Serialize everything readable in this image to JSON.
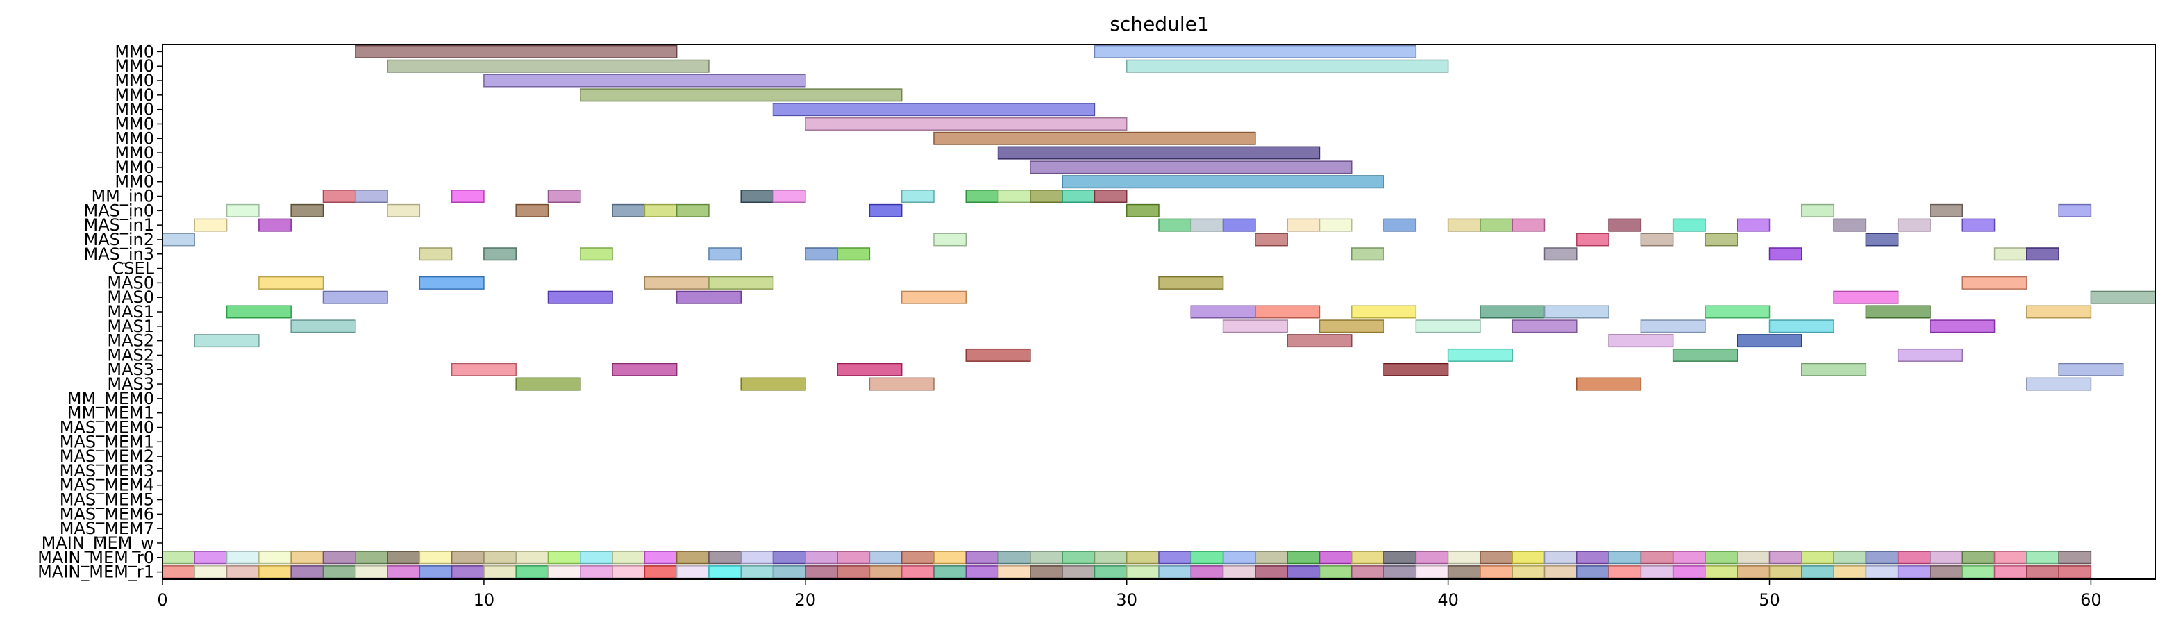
{
  "chart_data": {
    "type": "gantt",
    "title": "schedule1",
    "xlabel": "",
    "ylabel": "",
    "xlim": [
      0,
      62
    ],
    "xticks": [
      0,
      10,
      20,
      30,
      40,
      50,
      60
    ],
    "grid": false,
    "lanes": [
      "MM0",
      "MM0",
      "MM0",
      "MM0",
      "MM0",
      "MM0",
      "MM0",
      "MM0",
      "MM0",
      "MM0",
      "MM_in0",
      "MAS_in0",
      "MAS_in1",
      "MAS_in2",
      "MAS_in3",
      "CSEL",
      "MAS0",
      "MAS0",
      "MAS1",
      "MAS1",
      "MAS2",
      "MAS2",
      "MAS3",
      "MAS3",
      "MM_MEM0",
      "MM_MEM1",
      "MAS_MEM0",
      "MAS_MEM1",
      "MAS_MEM2",
      "MAS_MEM3",
      "MAS_MEM4",
      "MAS_MEM5",
      "MAS_MEM6",
      "MAS_MEM7",
      "MAIN_MEM_w",
      "MAIN_MEM_r0",
      "MAIN_MEM_r1"
    ],
    "tasks": [
      {
        "lane": 0,
        "start": 6,
        "end": 16,
        "color": "#8c5b5e"
      },
      {
        "lane": 0,
        "start": 29,
        "end": 39,
        "color": "#8fb0f0"
      },
      {
        "lane": 1,
        "start": 7,
        "end": 17,
        "color": "#9fb28a"
      },
      {
        "lane": 1,
        "start": 30,
        "end": 40,
        "color": "#9ee0d8"
      },
      {
        "lane": 2,
        "start": 10,
        "end": 20,
        "color": "#9b86d8"
      },
      {
        "lane": 3,
        "start": 13,
        "end": 23,
        "color": "#95b06a"
      },
      {
        "lane": 4,
        "start": 19,
        "end": 29,
        "color": "#6a6ae0"
      },
      {
        "lane": 5,
        "start": 20,
        "end": 30,
        "color": "#d69ac8"
      },
      {
        "lane": 6,
        "start": 24,
        "end": 34,
        "color": "#b8784a"
      },
      {
        "lane": 7,
        "start": 26,
        "end": 36,
        "color": "#4a3a86"
      },
      {
        "lane": 8,
        "start": 27,
        "end": 37,
        "color": "#8e6ab8"
      },
      {
        "lane": 9,
        "start": 28,
        "end": 38,
        "color": "#52a6d0"
      },
      {
        "lane": 10,
        "start": 5,
        "end": 6,
        "color": "#d86070"
      },
      {
        "lane": 10,
        "start": 6,
        "end": 7,
        "color": "#9aa0d8"
      },
      {
        "lane": 10,
        "start": 9,
        "end": 10,
        "color": "#f050f0"
      },
      {
        "lane": 10,
        "start": 12,
        "end": 13,
        "color": "#c070b8"
      },
      {
        "lane": 10,
        "start": 18,
        "end": 19,
        "color": "#3a5a6a"
      },
      {
        "lane": 10,
        "start": 19,
        "end": 20,
        "color": "#f080e8"
      },
      {
        "lane": 10,
        "start": 23,
        "end": 24,
        "color": "#80e0e0"
      },
      {
        "lane": 10,
        "start": 25,
        "end": 26,
        "color": "#40c050"
      },
      {
        "lane": 10,
        "start": 26,
        "end": 27,
        "color": "#b8e890"
      },
      {
        "lane": 10,
        "start": 27,
        "end": 28,
        "color": "#8a9a3a"
      },
      {
        "lane": 10,
        "start": 28,
        "end": 29,
        "color": "#40d0a0"
      },
      {
        "lane": 10,
        "start": 29,
        "end": 30,
        "color": "#a04050"
      },
      {
        "lane": 11,
        "start": 2,
        "end": 3,
        "color": "#d0f8d0"
      },
      {
        "lane": 11,
        "start": 4,
        "end": 5,
        "color": "#7a6a48"
      },
      {
        "lane": 11,
        "start": 7,
        "end": 8,
        "color": "#e8e0b0"
      },
      {
        "lane": 11,
        "start": 11,
        "end": 12,
        "color": "#a06840"
      },
      {
        "lane": 11,
        "start": 14,
        "end": 15,
        "color": "#6888a8"
      },
      {
        "lane": 11,
        "start": 15,
        "end": 16,
        "color": "#c8d860"
      },
      {
        "lane": 11,
        "start": 16,
        "end": 17,
        "color": "#88b850"
      },
      {
        "lane": 11,
        "start": 22,
        "end": 23,
        "color": "#4848e0"
      },
      {
        "lane": 11,
        "start": 30,
        "end": 31,
        "color": "#6a9a2a"
      },
      {
        "lane": 11,
        "start": 51,
        "end": 52,
        "color": "#b8e8b0"
      },
      {
        "lane": 11,
        "start": 55,
        "end": 56,
        "color": "#8a7a70"
      },
      {
        "lane": 11,
        "start": 59,
        "end": 60,
        "color": "#9090f0"
      },
      {
        "lane": 12,
        "start": 1,
        "end": 2,
        "color": "#fff0b0"
      },
      {
        "lane": 12,
        "start": 3,
        "end": 4,
        "color": "#b040c8"
      },
      {
        "lane": 12,
        "start": 31,
        "end": 32,
        "color": "#58c878"
      },
      {
        "lane": 12,
        "start": 32,
        "end": 33,
        "color": "#b0c0c8"
      },
      {
        "lane": 12,
        "start": 33,
        "end": 34,
        "color": "#6060e8"
      },
      {
        "lane": 12,
        "start": 35,
        "end": 36,
        "color": "#f8e0b0"
      },
      {
        "lane": 12,
        "start": 36,
        "end": 37,
        "color": "#f0f8c8"
      },
      {
        "lane": 12,
        "start": 38,
        "end": 39,
        "color": "#6090d8"
      },
      {
        "lane": 12,
        "start": 40,
        "end": 41,
        "color": "#e0d088"
      },
      {
        "lane": 12,
        "start": 41,
        "end": 42,
        "color": "#90c860"
      },
      {
        "lane": 12,
        "start": 42,
        "end": 43,
        "color": "#d870b0"
      },
      {
        "lane": 12,
        "start": 45,
        "end": 46,
        "color": "#904058"
      },
      {
        "lane": 12,
        "start": 47,
        "end": 48,
        "color": "#40e8c0"
      },
      {
        "lane": 12,
        "start": 49,
        "end": 50,
        "color": "#b060f0"
      },
      {
        "lane": 12,
        "start": 52,
        "end": 53,
        "color": "#9080a0"
      },
      {
        "lane": 12,
        "start": 54,
        "end": 55,
        "color": "#c8b0c8"
      },
      {
        "lane": 12,
        "start": 56,
        "end": 57,
        "color": "#8060f0"
      },
      {
        "lane": 13,
        "start": 0,
        "end": 1,
        "color": "#a8c8e8"
      },
      {
        "lane": 13,
        "start": 24,
        "end": 25,
        "color": "#c8f0c0"
      },
      {
        "lane": 13,
        "start": 34,
        "end": 35,
        "color": "#b86060"
      },
      {
        "lane": 13,
        "start": 44,
        "end": 45,
        "color": "#e85080"
      },
      {
        "lane": 13,
        "start": 46,
        "end": 47,
        "color": "#c0a898"
      },
      {
        "lane": 13,
        "start": 48,
        "end": 49,
        "color": "#a0b060"
      },
      {
        "lane": 13,
        "start": 53,
        "end": 54,
        "color": "#4850a0"
      },
      {
        "lane": 14,
        "start": 8,
        "end": 9,
        "color": "#d0d088"
      },
      {
        "lane": 14,
        "start": 10,
        "end": 11,
        "color": "#6a9a88"
      },
      {
        "lane": 14,
        "start": 13,
        "end": 14,
        "color": "#a8e060"
      },
      {
        "lane": 14,
        "start": 17,
        "end": 18,
        "color": "#78a8e0"
      },
      {
        "lane": 14,
        "start": 20,
        "end": 21,
        "color": "#6890d0"
      },
      {
        "lane": 14,
        "start": 21,
        "end": 22,
        "color": "#70d040"
      },
      {
        "lane": 14,
        "start": 37,
        "end": 38,
        "color": "#a0c880"
      },
      {
        "lane": 14,
        "start": 43,
        "end": 44,
        "color": "#9088a0"
      },
      {
        "lane": 14,
        "start": 50,
        "end": 51,
        "color": "#9030e0"
      },
      {
        "lane": 14,
        "start": 57,
        "end": 58,
        "color": "#d8e8b8"
      },
      {
        "lane": 14,
        "start": 58,
        "end": 59,
        "color": "#503898"
      },
      {
        "lane": 16,
        "start": 3,
        "end": 5,
        "color": "#f8d860"
      },
      {
        "lane": 16,
        "start": 8,
        "end": 10,
        "color": "#4898f0"
      },
      {
        "lane": 16,
        "start": 15,
        "end": 17,
        "color": "#d8b078"
      },
      {
        "lane": 16,
        "start": 17,
        "end": 19,
        "color": "#b8d070"
      },
      {
        "lane": 16,
        "start": 31,
        "end": 33,
        "color": "#a8a040"
      },
      {
        "lane": 16,
        "start": 56,
        "end": 58,
        "color": "#f89878"
      },
      {
        "lane": 17,
        "start": 5,
        "end": 7,
        "color": "#9098e0"
      },
      {
        "lane": 17,
        "start": 12,
        "end": 14,
        "color": "#6848e0"
      },
      {
        "lane": 17,
        "start": 16,
        "end": 18,
        "color": "#9050c0"
      },
      {
        "lane": 17,
        "start": 23,
        "end": 25,
        "color": "#f8b070"
      },
      {
        "lane": 17,
        "start": 52,
        "end": 54,
        "color": "#f060e0"
      },
      {
        "lane": 17,
        "start": 60,
        "end": 62,
        "color": "#88b098"
      },
      {
        "lane": 18,
        "start": 2,
        "end": 4,
        "color": "#40d060"
      },
      {
        "lane": 18,
        "start": 32,
        "end": 34,
        "color": "#a878d8"
      },
      {
        "lane": 18,
        "start": 34,
        "end": 36,
        "color": "#f87868"
      },
      {
        "lane": 18,
        "start": 37,
        "end": 39,
        "color": "#f8e850"
      },
      {
        "lane": 18,
        "start": 41,
        "end": 43,
        "color": "#50a080"
      },
      {
        "lane": 18,
        "start": 43,
        "end": 45,
        "color": "#a8c8e8"
      },
      {
        "lane": 18,
        "start": 48,
        "end": 50,
        "color": "#58e080"
      },
      {
        "lane": 18,
        "start": 53,
        "end": 55,
        "color": "#589040"
      },
      {
        "lane": 18,
        "start": 58,
        "end": 60,
        "color": "#f0c870"
      },
      {
        "lane": 19,
        "start": 4,
        "end": 6,
        "color": "#88c8c0"
      },
      {
        "lane": 19,
        "start": 33,
        "end": 35,
        "color": "#e0b0d8"
      },
      {
        "lane": 19,
        "start": 36,
        "end": 38,
        "color": "#c0a040"
      },
      {
        "lane": 19,
        "start": 39,
        "end": 41,
        "color": "#c0f0d8"
      },
      {
        "lane": 19,
        "start": 42,
        "end": 44,
        "color": "#a870c8"
      },
      {
        "lane": 19,
        "start": 46,
        "end": 48,
        "color": "#a8c0e8"
      },
      {
        "lane": 19,
        "start": 50,
        "end": 52,
        "color": "#60d8e8"
      },
      {
        "lane": 19,
        "start": 55,
        "end": 57,
        "color": "#b040d8"
      },
      {
        "lane": 20,
        "start": 1,
        "end": 3,
        "color": "#98d8d0"
      },
      {
        "lane": 20,
        "start": 35,
        "end": 37,
        "color": "#b86068"
      },
      {
        "lane": 20,
        "start": 45,
        "end": 47,
        "color": "#d8a8e0"
      },
      {
        "lane": 20,
        "start": 49,
        "end": 51,
        "color": "#3050b0"
      },
      {
        "lane": 21,
        "start": 25,
        "end": 27,
        "color": "#b84848"
      },
      {
        "lane": 21,
        "start": 40,
        "end": 42,
        "color": "#60f0d8"
      },
      {
        "lane": 21,
        "start": 47,
        "end": 49,
        "color": "#50b070"
      },
      {
        "lane": 21,
        "start": 54,
        "end": 56,
        "color": "#c898e8"
      },
      {
        "lane": 22,
        "start": 9,
        "end": 11,
        "color": "#f07888"
      },
      {
        "lane": 22,
        "start": 14,
        "end": 16,
        "color": "#b83898"
      },
      {
        "lane": 22,
        "start": 21,
        "end": 23,
        "color": "#d02870"
      },
      {
        "lane": 22,
        "start": 38,
        "end": 40,
        "color": "#882028"
      },
      {
        "lane": 22,
        "start": 51,
        "end": 53,
        "color": "#98d090"
      },
      {
        "lane": 22,
        "start": 59,
        "end": 61,
        "color": "#98a8e0"
      },
      {
        "lane": 23,
        "start": 11,
        "end": 13,
        "color": "#80a038"
      },
      {
        "lane": 23,
        "start": 18,
        "end": 20,
        "color": "#a0a020"
      },
      {
        "lane": 23,
        "start": 22,
        "end": 24,
        "color": "#d89880"
      },
      {
        "lane": 23,
        "start": 44,
        "end": 46,
        "color": "#d06830"
      },
      {
        "lane": 23,
        "start": 58,
        "end": 60,
        "color": "#b0c0e8"
      }
    ],
    "memory_lanes": [
      {
        "lane": 35,
        "start": 0,
        "end": 60,
        "colors": [
          "#b0e090",
          "#d070f0",
          "#d0f0f0",
          "#f0f8c0",
          "#e8c070",
          "#9868a0",
          "#78a060",
          "#786850",
          "#f8f098",
          "#b09870",
          "#c8c088",
          "#e0e0b0",
          "#a8f060",
          "#80e8f0",
          "#d8e8b0",
          "#e060f0",
          "#a88840",
          "#807080",
          "#c0c0f0",
          "#6858c8",
          "#c880d0",
          "#d870b0",
          "#98b8e0",
          "#c06850",
          "#f8c860",
          "#9858c0",
          "#70a0a0",
          "#a0c0a0",
          "#60c880",
          "#a0c890",
          "#c0c060",
          "#7060e0",
          "#40e080",
          "#88a8f0",
          "#b0b088",
          "#40b040",
          "#c040d0",
          "#e0d060",
          "#505060",
          "#d070c0",
          "#e8e8c8",
          "#a87050",
          "#e8e040",
          "#b8c0e0",
          "#8850c0",
          "#70b0d0",
          "#d06888",
          "#e070d0",
          "#80d060",
          "#d8d0b8",
          "#c080c0",
          "#c0e060",
          "#a0d0a0",
          "#7080c0",
          "#e05090",
          "#d0a0d0",
          "#70a050",
          "#f080a0",
          "#80e0a0",
          "#887078"
        ]
      },
      {
        "lane": 36,
        "start": 0,
        "end": 60,
        "colors": [
          "#f07870",
          "#f0f0d0",
          "#e0b0a8",
          "#f8d050",
          "#8a5aa0",
          "#70a070",
          "#e8e8c8",
          "#d060d0",
          "#6080e0",
          "#8850c0",
          "#e0e0b0",
          "#40d070",
          "#f8e8e8",
          "#e890e0",
          "#f8b8d0",
          "#f04040",
          "#e8d8f0",
          "#40f0f0",
          "#80d0d0",
          "#70b0c0",
          "#a05070",
          "#c05050",
          "#d09060",
          "#f06080",
          "#50b090",
          "#a050d0",
          "#f8d0a0",
          "#806050",
          "#a09090",
          "#50c080",
          "#c0e8a0",
          "#80c0e0",
          "#c050c0",
          "#e0c0d0",
          "#a04060",
          "#6040c0",
          "#80d060",
          "#c06888",
          "#807090",
          "#f8e0f0",
          "#806858",
          "#f89868",
          "#e0d070",
          "#e0c098",
          "#6070c0",
          "#f87878",
          "#d8b0e0",
          "#e060e0",
          "#c8e060",
          "#d8a060",
          "#d0c060",
          "#60c0c0",
          "#f0d080",
          "#c0c8f0",
          "#a080f0",
          "#8a6a70",
          "#80e080",
          "#f070a0",
          "#c05060",
          "#d05060"
        ]
      }
    ]
  }
}
